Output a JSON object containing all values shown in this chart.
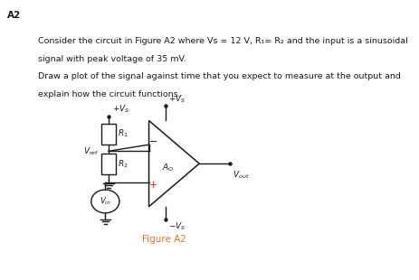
{
  "title_label": "A2",
  "para_line1": "Consider the circuit in Figure A2 where Vs = 12 V, R₁= R₂ and the input is a sinusoidal",
  "para_line2": "signal with peak voltage of 35 mV.",
  "para_line3": "Draw a plot of the signal against time that you expect to measure at the output and",
  "para_line4": "explain how the circuit functions.",
  "figure_label": "Figure A2",
  "bg_color": "#ffffff",
  "text_color": "#1a1a1a",
  "red_color": "#ff0000",
  "fig_label_color": "#e87020"
}
